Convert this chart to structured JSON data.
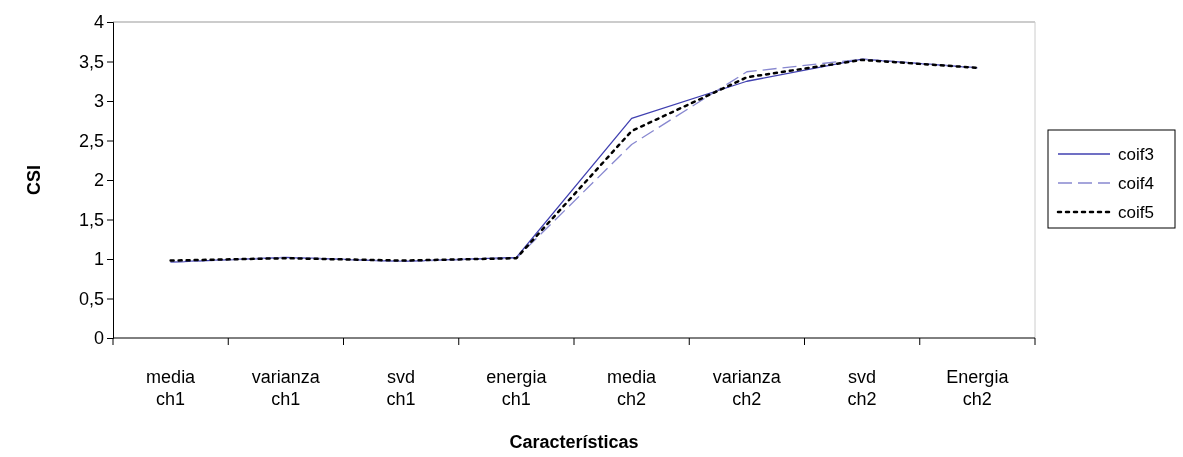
{
  "chart_data": {
    "type": "line",
    "xlabel": "Características",
    "ylabel": "CSI",
    "categories": [
      "media ch1",
      "varianza ch1",
      "svd ch1",
      "energia ch1",
      "media ch2",
      "varianza ch2",
      "svd ch2",
      "Energia ch2"
    ],
    "series": [
      {
        "name": "coif3",
        "color": "#4040b0",
        "line_style": "solid",
        "values": [
          0.96,
          1.02,
          0.97,
          1.02,
          2.78,
          3.25,
          3.53,
          3.42
        ]
      },
      {
        "name": "coif4",
        "color": "#8888d0",
        "line_style": "dashed",
        "values": [
          0.96,
          1.02,
          0.97,
          1.01,
          2.45,
          3.37,
          3.53,
          3.42
        ]
      },
      {
        "name": "coif5",
        "color": "#000000",
        "line_style": "dotted",
        "values": [
          0.98,
          1.01,
          0.98,
          1.01,
          2.62,
          3.3,
          3.52,
          3.42
        ]
      }
    ],
    "ylim": [
      0,
      4
    ],
    "yticks": [
      0,
      {
        "value": 0.5,
        "label": "0,5"
      },
      1,
      {
        "value": 1.5,
        "label": "1,5"
      },
      2,
      {
        "value": 2.5,
        "label": "2,5"
      },
      3,
      {
        "value": 3.5,
        "label": "3,5"
      },
      4
    ],
    "grid": false,
    "legend": "right",
    "marker": "none"
  }
}
